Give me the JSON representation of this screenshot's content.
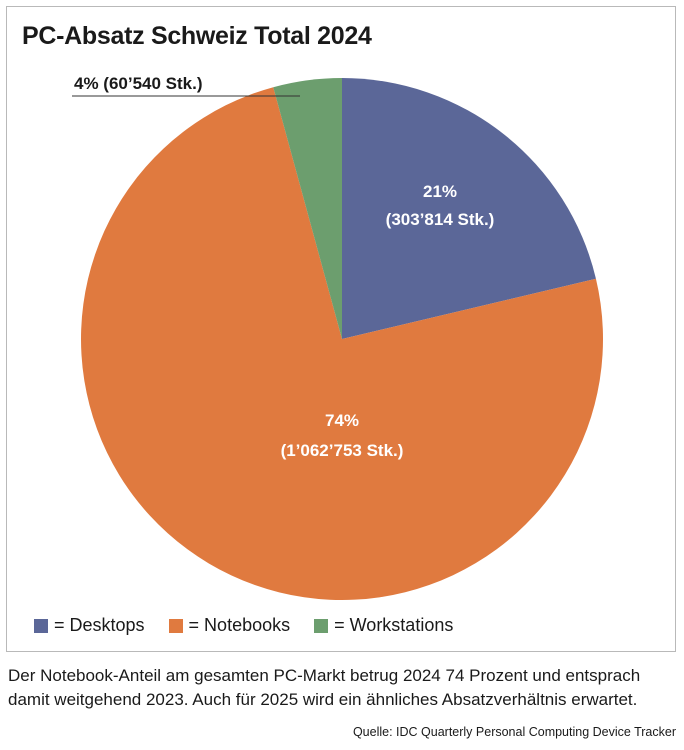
{
  "chart_data": {
    "type": "pie",
    "title": "PC-Absatz Schweiz Total 2024",
    "start_angle_deg": 0,
    "direction": "clockwise",
    "slices": [
      {
        "name": "Desktops",
        "value": 303814,
        "percent_label": "21%",
        "units_label": "(303’814 Stk.)",
        "color": "#5b6798"
      },
      {
        "name": "Notebooks",
        "value": 1062753,
        "percent_label": "74%",
        "units_label": "(1’062’753 Stk.)",
        "color": "#e07a3f"
      },
      {
        "name": "Workstations",
        "value": 60540,
        "percent_label": "4%",
        "units_label": "(60’540 Stk.)",
        "color": "#6c9e6e"
      }
    ],
    "legend": {
      "position": "bottom-left",
      "items": [
        {
          "label": "= Desktops",
          "color": "#5b6798"
        },
        {
          "label": "= Notebooks",
          "color": "#e07a3f"
        },
        {
          "label": "= Workstations",
          "color": "#6c9e6e"
        }
      ]
    },
    "callouts": {
      "workstations": "4% (60’540 Stk.)"
    }
  },
  "caption": "Der Notebook-Anteil am gesamten PC-Markt betrug 2024 74 Prozent und entsprach damit weitgehend 2023. Auch für 2025 wird ein ähnliches Absatzverhältnis erwartet.",
  "source": "Quelle: IDC Quarterly Personal Computing Device Tracker"
}
